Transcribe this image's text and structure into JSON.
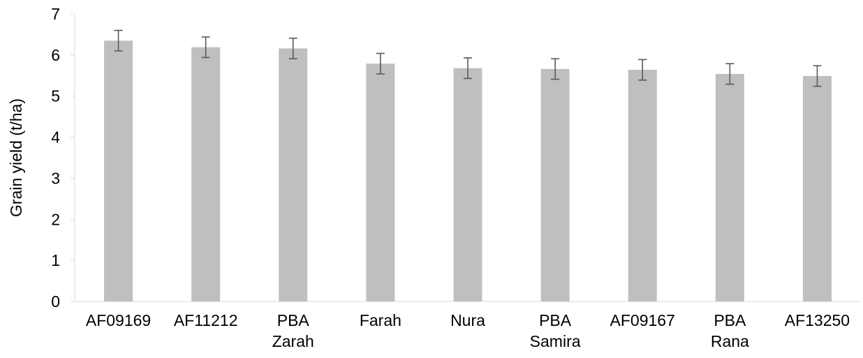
{
  "chart_data": {
    "type": "bar",
    "categories": [
      [
        "AF09169"
      ],
      [
        "AF11212"
      ],
      [
        "PBA",
        "Zarah"
      ],
      [
        "Farah"
      ],
      [
        "Nura"
      ],
      [
        "PBA",
        "Samira"
      ],
      [
        "AF09167"
      ],
      [
        "PBA",
        "Rana"
      ],
      [
        "AF13250"
      ]
    ],
    "values": [
      6.35,
      6.19,
      6.16,
      5.79,
      5.68,
      5.66,
      5.64,
      5.54,
      5.49
    ],
    "error": [
      0.25,
      0.25,
      0.25,
      0.25,
      0.25,
      0.25,
      0.25,
      0.25,
      0.25
    ],
    "title": "",
    "xlabel": "",
    "ylabel": "Grain yield (t/ha)",
    "ylim": [
      0,
      7
    ],
    "yticks": [
      "0",
      "1",
      "2",
      "3",
      "4",
      "5",
      "6",
      "7"
    ],
    "grid": false,
    "legend": "none",
    "colors": {
      "bar": "#bfbfbf",
      "error_bar": "#595959",
      "axis": "#d9d9d9",
      "text": "#000000"
    }
  }
}
